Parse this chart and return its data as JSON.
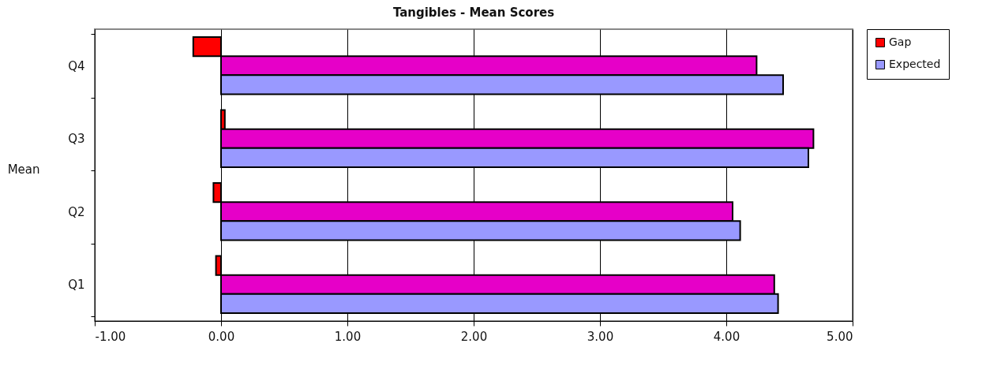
{
  "chart_data": {
    "type": "bar",
    "orientation": "horizontal",
    "title": "Tangibles - Mean Scores",
    "ylabel": "Mean",
    "categories": [
      "Q4",
      "Q3",
      "Q2",
      "Q1"
    ],
    "series": [
      {
        "name": "Gap",
        "color": "#ff0000",
        "values": [
          -0.22,
          0.03,
          -0.06,
          -0.04
        ]
      },
      {
        "color": "#e600c8",
        "values": [
          4.24,
          4.69,
          4.05,
          4.38
        ]
      },
      {
        "name": "Expected",
        "color": "#9999ff",
        "values": [
          4.45,
          4.65,
          4.11,
          4.41
        ]
      }
    ],
    "xlim": [
      -1,
      5
    ],
    "xticks": [
      {
        "value": -1,
        "label": "-1.00"
      },
      {
        "value": 0,
        "label": "0.00"
      },
      {
        "value": 1,
        "label": "1.00"
      },
      {
        "value": 2,
        "label": "2.00"
      },
      {
        "value": 3,
        "label": "3.00"
      },
      {
        "value": 4,
        "label": "4.00"
      },
      {
        "value": 5,
        "label": "5.00"
      }
    ],
    "grid": "x",
    "legend": "right"
  }
}
